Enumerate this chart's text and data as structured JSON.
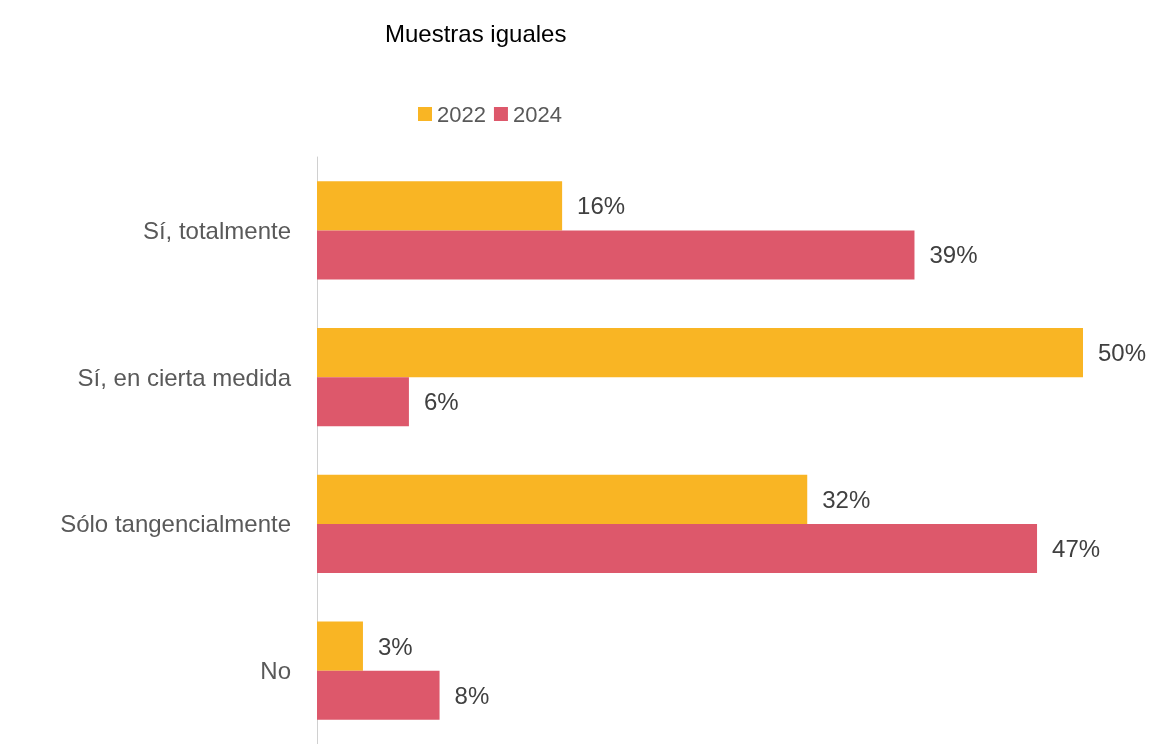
{
  "chart_data": {
    "type": "bar",
    "orientation": "horizontal",
    "title": "Muestras iguales",
    "categories": [
      "Sí, totalmente",
      "Sí, en cierta medida",
      "Sólo tangencialmente",
      "No"
    ],
    "series": [
      {
        "name": "2022",
        "color": "#f9b524",
        "values": [
          16,
          50,
          32,
          3
        ],
        "value_labels": [
          "16%",
          "50%",
          "32%",
          "3%"
        ]
      },
      {
        "name": "2024",
        "color": "#dd586b",
        "values": [
          39,
          6,
          47,
          8
        ],
        "value_labels": [
          "39%",
          "6%",
          "47%",
          "8%"
        ]
      }
    ],
    "legend": "top"
  }
}
